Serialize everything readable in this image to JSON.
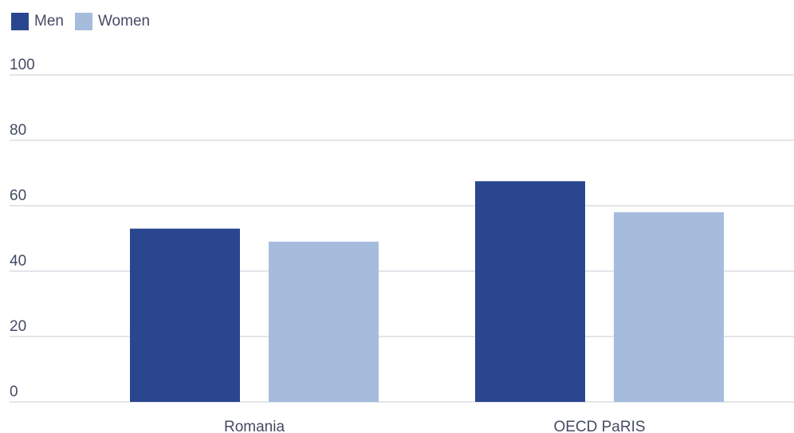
{
  "chart_data": {
    "type": "bar",
    "categories": [
      "Romania",
      "OECD PaRIS"
    ],
    "series": [
      {
        "name": "Men",
        "values": [
          53,
          67.5
        ],
        "color": "#2a468f"
      },
      {
        "name": "Women",
        "values": [
          49,
          58
        ],
        "color": "#a5bcdd"
      }
    ],
    "y_ticks": [
      0,
      20,
      40,
      60,
      80,
      100
    ],
    "ylim": [
      0,
      100
    ],
    "grid": true,
    "legend_position": "top-left",
    "title": "",
    "xlabel": "",
    "ylabel": ""
  },
  "colors": {
    "gridline": "#c7cbd6",
    "text": "#444b63"
  }
}
